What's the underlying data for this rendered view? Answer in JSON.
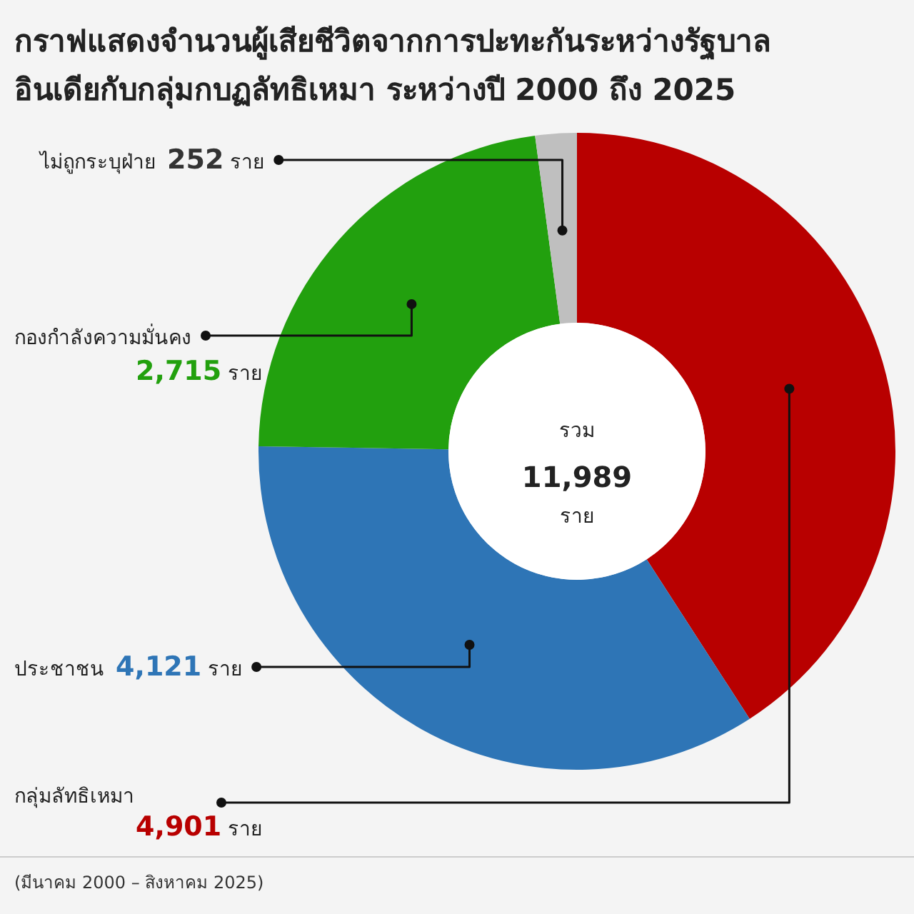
{
  "chart_data": {
    "type": "donut",
    "title": "กราฟแสดงจำนวนผู้เสียชีวิตจากการปะทะกันระหว่างรัฐบาลอินเดียกับกลุ่มกบฏลัทธิเหมา ระหว่างปี 2000 ถึง 2025",
    "categories": [
      "กลุ่มลัทธิเหมา",
      "ประชาชน",
      "กองกำลังความมั่นคง",
      "ไม่ถูกระบุฝ่าย"
    ],
    "values": [
      4901,
      4121,
      2715,
      252
    ],
    "colors": [
      "#b80000",
      "#2e75b6",
      "#22a00e",
      "#bfbfbf"
    ],
    "value_labels": [
      "4,901 ราย",
      "4,121 ราย",
      "2,715 ราย",
      "252 ราย"
    ],
    "annotations": [
      "รวม",
      "11,989",
      "ราย",
      "(มีนาคม 2000 – สิงหาคม 2025)"
    ]
  }
}
